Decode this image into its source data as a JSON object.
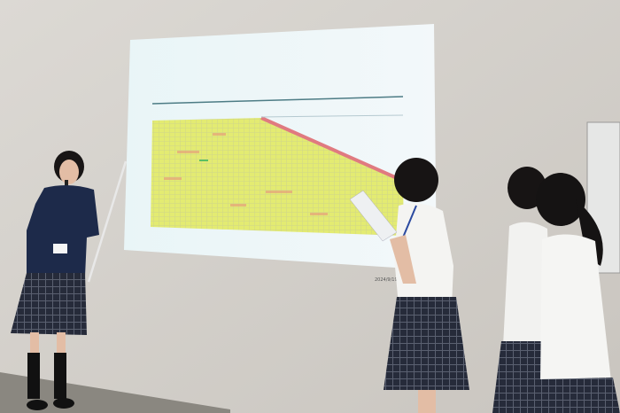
{
  "scene": {
    "colors": {
      "wall": "#d5d1cc",
      "screen": "#e8f4f6",
      "heatmap_fill": "#e4ec74",
      "heatmap_high": "#e58080",
      "uniform_navy": "#1d2a4a",
      "shirt_white": "#f4f4f2",
      "skirt_plaid": "#2a2f3e",
      "hair": "#171515"
    },
    "projected_slide": {
      "content": "heatmap-table",
      "watermark": "2024/9/19"
    }
  }
}
